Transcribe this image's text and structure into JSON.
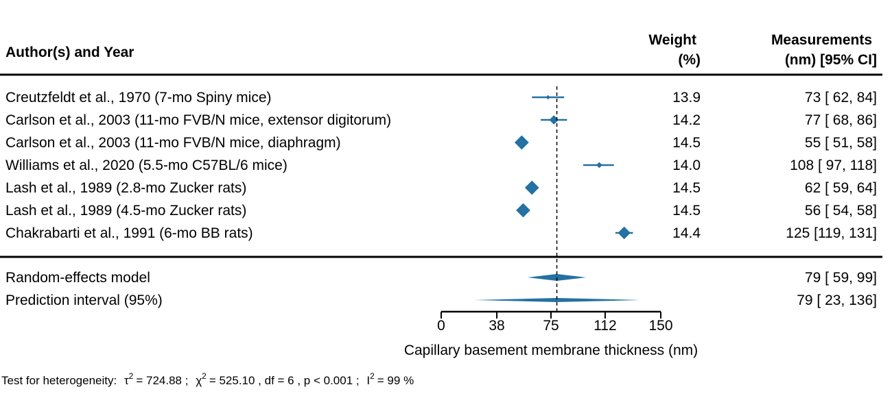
{
  "chart_data": {
    "type": "forest",
    "columns": {
      "study": "Author(s) and Year",
      "weight_line1": "Weight",
      "weight_line2": "(%)",
      "measure_line1": "Measurements",
      "measure_line2": "(nm) [95% CI]"
    },
    "studies": [
      {
        "label": "Creutzfeldt et al., 1970 (7-mo Spiny mice)",
        "estimate": 73,
        "ci_low": 62,
        "ci_high": 84,
        "weight": "13.9",
        "ci_text": "73 [ 62,  84]"
      },
      {
        "label": "Carlson et al., 2003 (11-mo FVB/N mice, extensor digitorum)",
        "estimate": 77,
        "ci_low": 68,
        "ci_high": 86,
        "weight": "14.2",
        "ci_text": "77 [ 68,  86]"
      },
      {
        "label": "Carlson et al., 2003 (11-mo FVB/N mice, diaphragm)",
        "estimate": 55,
        "ci_low": 51,
        "ci_high": 58,
        "weight": "14.5",
        "ci_text": "55 [ 51,  58]"
      },
      {
        "label": "Williams et al., 2020 (5.5-mo C57BL/6 mice)",
        "estimate": 108,
        "ci_low": 97,
        "ci_high": 118,
        "weight": "14.0",
        "ci_text": "108 [ 97, 118]"
      },
      {
        "label": "Lash et al., 1989 (2.8-mo Zucker rats)",
        "estimate": 62,
        "ci_low": 59,
        "ci_high": 64,
        "weight": "14.5",
        "ci_text": "62 [ 59,  64]"
      },
      {
        "label": "Lash et al., 1989 (4.5-mo Zucker rats)",
        "estimate": 56,
        "ci_low": 54,
        "ci_high": 58,
        "weight": "14.5",
        "ci_text": "56 [ 54,  58]"
      },
      {
        "label": "Chakrabarti et al., 1991 (6-mo BB rats)",
        "estimate": 125,
        "ci_low": 119,
        "ci_high": 131,
        "weight": "14.4",
        "ci_text": "125 [119, 131]"
      }
    ],
    "summary": {
      "label": "Random-effects model",
      "estimate": 79,
      "ci_low": 59,
      "ci_high": 99,
      "ci_text": "79 [ 59,  99]"
    },
    "prediction": {
      "label": "Prediction interval (95%)",
      "estimate": 79,
      "ci_low": 23,
      "ci_high": 136,
      "ci_text": "79 [ 23, 136]"
    },
    "reference_line": 79,
    "xaxis": {
      "label": "Capillary basement membrane thickness (nm)",
      "ticks": [
        0,
        38,
        75,
        112,
        150
      ],
      "tick_labels": [
        "0",
        "38",
        "75",
        "112",
        "150"
      ],
      "range": [
        0,
        150
      ]
    },
    "heterogeneity": {
      "prefix": "Test for heterogeneity:",
      "tau2_value": "= 724.88 ;",
      "chi2_value": "= 525.10 , df = 6 ,  p < 0.001 ;",
      "i2_value": "= 99 %"
    },
    "color": "#2471a3"
  }
}
